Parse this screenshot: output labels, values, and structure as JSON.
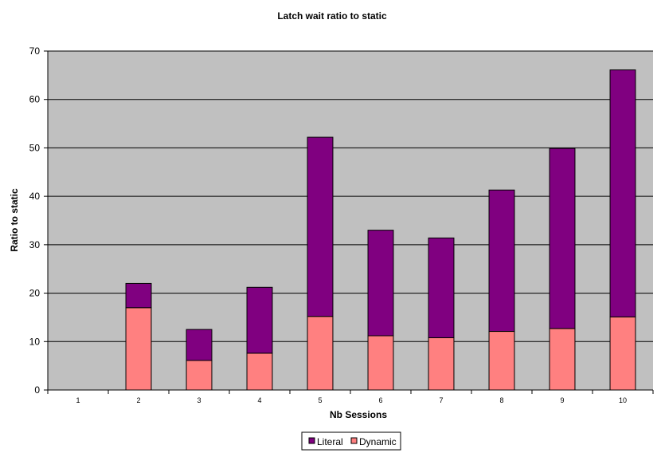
{
  "chart_data": {
    "type": "bar",
    "stacked": true,
    "title": "Latch wait ratio to static",
    "xlabel": "Nb Sessions",
    "ylabel": "Ratio to static",
    "ylim": [
      0,
      70
    ],
    "yticks": [
      0,
      10,
      20,
      30,
      40,
      50,
      60,
      70
    ],
    "categories": [
      "1",
      "2",
      "3",
      "4",
      "5",
      "6",
      "7",
      "8",
      "9",
      "10"
    ],
    "series": [
      {
        "name": "Dynamic",
        "color": "#ff8080",
        "values": [
          0,
          17,
          6.1,
          7.6,
          15.2,
          11.2,
          10.8,
          12.1,
          12.7,
          15.1
        ]
      },
      {
        "name": "Literal",
        "color": "#800080",
        "values": [
          0,
          5,
          6.4,
          13.6,
          37,
          21.8,
          20.6,
          29.2,
          37.2,
          51
        ]
      }
    ],
    "legend_order": [
      "Literal",
      "Dynamic"
    ],
    "plot_background": "#c0c0c0",
    "grid": true,
    "legend_position": "bottom"
  }
}
